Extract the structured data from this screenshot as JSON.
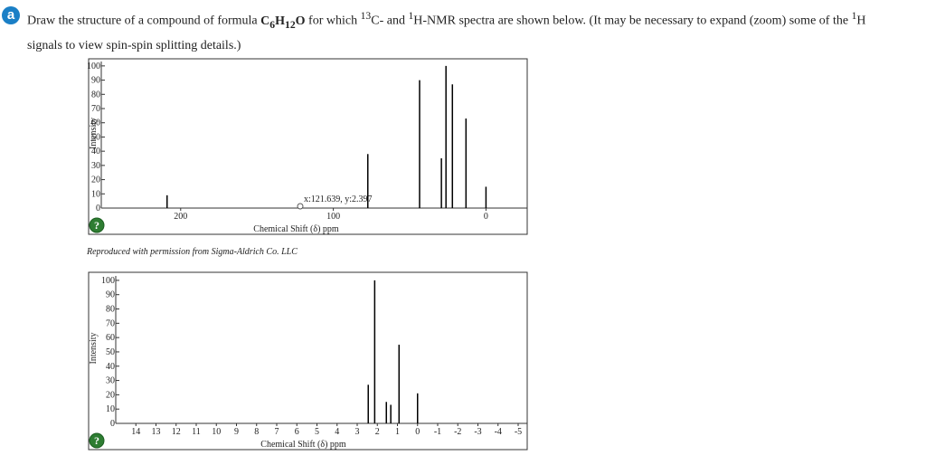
{
  "question": {
    "badge": "a",
    "segments": [
      "Draw the structure of a compound of formula ",
      "C",
      "6",
      "H",
      "12",
      "O",
      " for which ",
      "13",
      "C- and ",
      "1",
      "H-NMR spectra are shown below. (It may be necessary to expand (zoom) some of the ",
      "1",
      "H signals to view spin-spin splitting details.)"
    ],
    "caption": "Reproduced with permission from Sigma-Aldrich Co. LLC"
  },
  "chart_data": [
    {
      "type": "spectrum",
      "xlabel": "Chemical Shift (δ) ppm",
      "ylabel": "Intensity",
      "help": "?",
      "x": [
        208.9,
        77.4,
        43.5,
        29.2,
        26.2,
        22.0,
        13.1,
        0
      ],
      "values": [
        9,
        38,
        90,
        35,
        100,
        87,
        63,
        15
      ],
      "xlim": [
        252,
        -27
      ],
      "xticks": [
        200,
        100,
        0
      ],
      "ylim": [
        0,
        105
      ],
      "yticks": [
        0,
        10,
        20,
        30,
        40,
        50,
        60,
        70,
        80,
        90,
        100
      ],
      "annotation": "x:121.639, y:2.397",
      "color": "#000000"
    },
    {
      "type": "spectrum",
      "xlabel": "Chemical Shift (δ) ppm",
      "ylabel": "Intensity",
      "help": "?",
      "x": [
        2.45,
        2.13,
        1.55,
        1.33,
        0.92,
        0
      ],
      "values": [
        27,
        100,
        15,
        13,
        55,
        21
      ],
      "xlim": [
        15,
        -5.45
      ],
      "xticks": [
        14,
        13,
        12,
        11,
        10,
        9,
        8,
        7,
        6,
        5,
        4,
        3,
        2,
        1,
        0,
        -1,
        -2,
        -3,
        -4,
        -5
      ],
      "ylim": [
        0,
        105
      ],
      "yticks": [
        0,
        10,
        20,
        30,
        40,
        50,
        60,
        70,
        80,
        90,
        100
      ],
      "color": "#000000"
    }
  ]
}
